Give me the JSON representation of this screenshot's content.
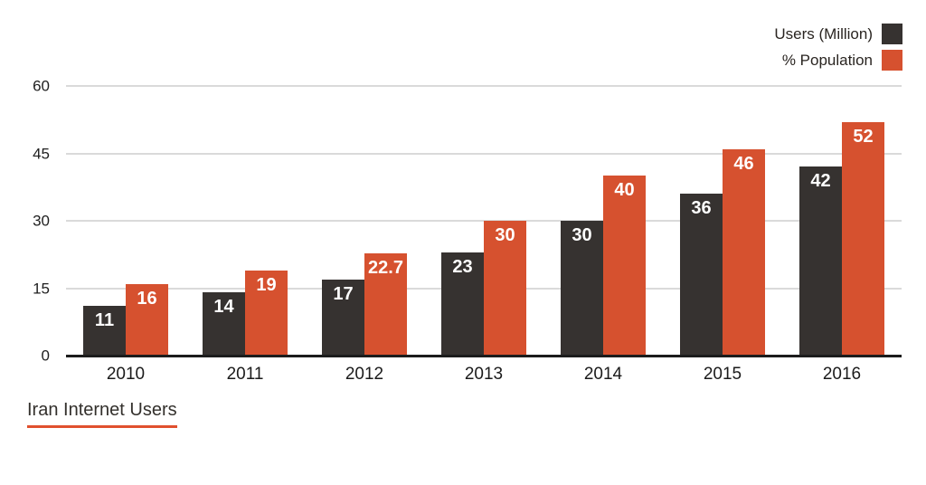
{
  "chart_data": {
    "type": "bar",
    "title": "Iran Internet Users",
    "categories": [
      "2010",
      "2011",
      "2012",
      "2013",
      "2014",
      "2015",
      "2016"
    ],
    "series": [
      {
        "name": "Users (Million)",
        "color": "#363230",
        "values": [
          11,
          14,
          17,
          23,
          30,
          36,
          42
        ]
      },
      {
        "name": "% Population",
        "color": "#d6512f",
        "values": [
          16,
          19,
          22.7,
          30,
          40,
          46,
          52
        ]
      }
    ],
    "ylim": [
      0,
      60
    ],
    "yticks": [
      0,
      15,
      30,
      45,
      60
    ],
    "grid": true,
    "legend_position": "top-right",
    "value_label_color": "#ffffff",
    "title_underline_color": "#e0502e",
    "gridline_color": "#dadada",
    "baseline_color": "#1c1c1c"
  }
}
